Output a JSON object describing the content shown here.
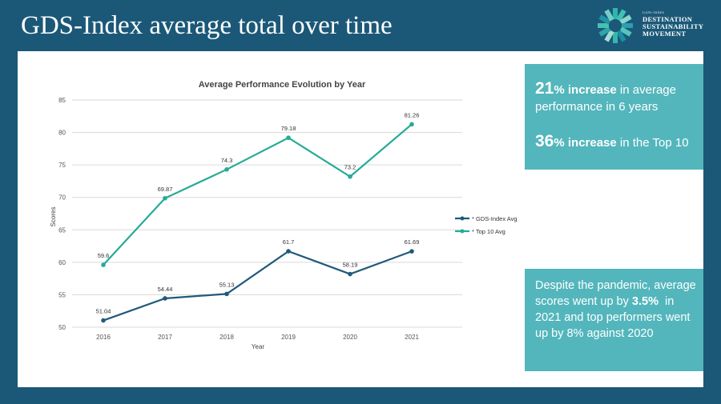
{
  "header": {
    "title": "GDS-Index average total over time",
    "logo": {
      "small_text": "GDS-Index",
      "line1": "DESTINATION",
      "line2": "SUSTAINABILITY",
      "line3": "MOVEMENT"
    }
  },
  "highlights": {
    "stat1": {
      "number": "21",
      "bold": "% increase",
      "text": " in average performance in 6 years"
    },
    "stat2": {
      "number": "36",
      "bold": "% increase",
      "text": " in the Top 10"
    },
    "note": {
      "part1": "Despite the pandemic, average scores went up by ",
      "bold1": "3.5%",
      "part2": "  in 2021 and top performers went up by 8% against 2020"
    }
  },
  "colors": {
    "background": "#1b5878",
    "card": "#53b6bc",
    "gds_series": "#1f5a7a",
    "top10_series": "#26ab96"
  },
  "chart_data": {
    "type": "line",
    "title": "Average Performance Evolution by Year",
    "xlabel": "Year",
    "ylabel": "Scores",
    "categories": [
      "2016",
      "2017",
      "2018",
      "2019",
      "2020",
      "2021"
    ],
    "ylim": [
      50,
      85
    ],
    "yticks": [
      50,
      55,
      60,
      65,
      70,
      75,
      80,
      85
    ],
    "grid": true,
    "legend_position": "right",
    "series": [
      {
        "name": "* GDS-Index Avg",
        "color": "#1f5a7a",
        "values": [
          51.04,
          54.44,
          55.13,
          61.7,
          58.19,
          61.69
        ],
        "labels": [
          "51.04",
          "54.44",
          "55.13",
          "61.7",
          "58.19",
          "61.69"
        ]
      },
      {
        "name": "* Top 10 Avg",
        "color": "#26ab96",
        "values": [
          59.6,
          69.87,
          74.3,
          79.18,
          73.2,
          81.26
        ],
        "labels": [
          "59.6",
          "69.87",
          "74.3",
          "79.18",
          "73.2",
          "81.26"
        ]
      }
    ]
  }
}
